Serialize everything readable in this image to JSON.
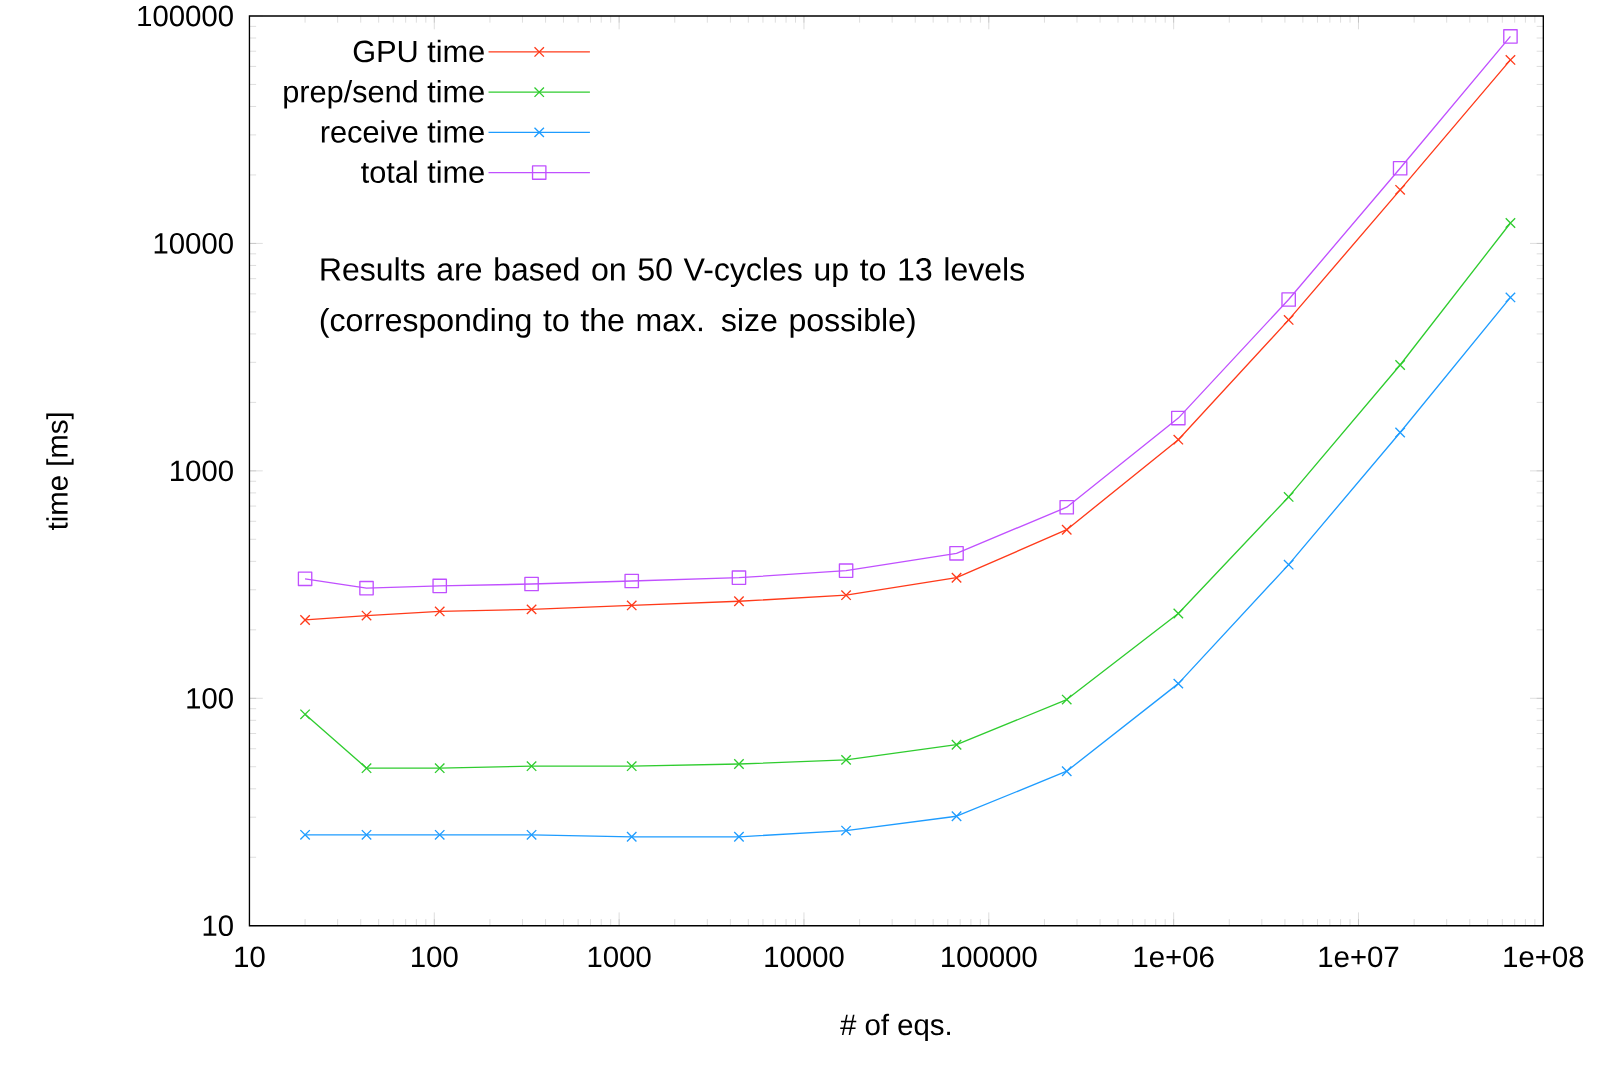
{
  "chart_data": {
    "type": "line",
    "xlabel": "# of eqs.",
    "ylabel": "time [ms]",
    "log": "xy",
    "grid": false,
    "legend": "top left",
    "line_style": "solid",
    "x": [
      20,
      43,
      107,
      336,
      1170,
      4450,
      16900,
      66900,
      264000,
      1060000,
      4190000,
      16800000,
      66400000
    ],
    "xlim": [
      10,
      100000000
    ],
    "ylim": [
      10,
      100000
    ],
    "xticks": [
      10,
      100,
      1000,
      10000,
      100000,
      {
        "value": 1000000,
        "label": "1e+06"
      },
      {
        "value": 10000000,
        "label": "1e+07"
      },
      {
        "value": 100000000,
        "label": "1e+08"
      }
    ],
    "yticks": [
      10,
      100,
      1000,
      10000,
      100000
    ],
    "series": [
      {
        "name": "GPU time",
        "color": "#ff3a1a",
        "marker": "cross",
        "values": [
          221,
          231,
          241,
          246,
          256,
          267,
          284,
          339,
          551,
          1371,
          4610,
          17200,
          64100
        ]
      },
      {
        "name": "prep/send time",
        "color": "#2fcc2f",
        "marker": "cross",
        "values": [
          85,
          49.3,
          49.3,
          50.3,
          50.3,
          51.4,
          53.6,
          62.5,
          98.7,
          236,
          768,
          2920,
          12300
        ]
      },
      {
        "name": "receive time",
        "color": "#1e9cff",
        "marker": "cross",
        "values": [
          25.1,
          25.1,
          25.1,
          25.1,
          24.6,
          24.6,
          26.2,
          30.3,
          47.8,
          116,
          387,
          1475,
          5790
        ]
      },
      {
        "name": "total time",
        "color": "#c050ff",
        "marker": "square",
        "values": [
          335,
          305,
          312,
          318,
          328,
          339,
          364,
          434,
          692,
          1706,
          5670,
          21400,
          81300
        ]
      }
    ],
    "annotations": [
      "Results are based on 50 V-cycles up to 13 levels (corresponding to the max. size possible)"
    ]
  }
}
